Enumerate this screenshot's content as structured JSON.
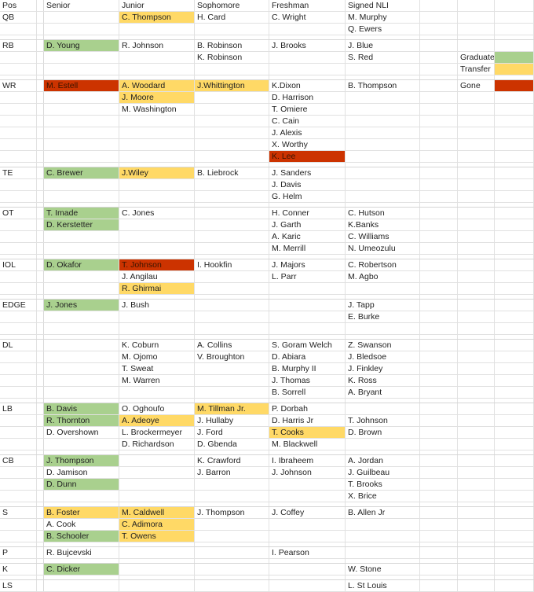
{
  "headers": [
    "Pos",
    "Senior",
    "Junior",
    "Sophomore",
    "Freshman",
    "Signed NLI"
  ],
  "legend": [
    {
      "label": "Graduate",
      "color": "#a9d08e"
    },
    {
      "label": "Transfer",
      "color": "#ffd966"
    },
    {
      "label": "Gone",
      "color": "#cc3300"
    }
  ],
  "rows": [
    {
      "pos": "QB",
      "senior": "",
      "junior": "C. Thompson",
      "sophomore": "H. Card",
      "freshman": "C. Wright",
      "nli": "M. Murphy"
    },
    {
      "pos": "",
      "senior": "",
      "junior": "",
      "sophomore": "",
      "freshman": "",
      "nli": "Q. Ewers"
    },
    {
      "pos": "RB",
      "senior": "D. Young",
      "junior": "R. Johnson",
      "sophomore": "B. Robinson",
      "freshman": "J. Brooks",
      "nli": "J. Blue"
    },
    {
      "pos": "",
      "senior": "",
      "junior": "",
      "sophomore": "K. Robinson",
      "freshman": "",
      "nli": "S. Red"
    },
    {
      "pos": "",
      "senior": "",
      "junior": "",
      "sophomore": "",
      "freshman": "",
      "nli": ""
    },
    {
      "pos": "WR",
      "senior": "M. Estell",
      "junior": "A. Woodard",
      "sophomore": "J.Whittington",
      "freshman": "K.Dixon",
      "nli": "B. Thompson"
    },
    {
      "pos": "",
      "senior": "",
      "junior": "J. Moore",
      "sophomore": "",
      "freshman": "D. Harrison",
      "nli": ""
    },
    {
      "pos": "",
      "senior": "",
      "junior": "M. Washington",
      "sophomore": "",
      "freshman": "T. Omiere",
      "nli": ""
    },
    {
      "pos": "",
      "senior": "",
      "junior": "",
      "sophomore": "",
      "freshman": "C. Cain",
      "nli": ""
    },
    {
      "pos": "",
      "senior": "",
      "junior": "",
      "sophomore": "",
      "freshman": "J. Alexis",
      "nli": ""
    },
    {
      "pos": "",
      "senior": "",
      "junior": "",
      "sophomore": "",
      "freshman": "X. Worthy",
      "nli": ""
    },
    {
      "pos": "",
      "senior": "",
      "junior": "",
      "sophomore": "",
      "freshman": "K. Lee",
      "nli": ""
    },
    {
      "pos": "TE",
      "senior": "C. Brewer",
      "junior": "J.Wiley",
      "sophomore": "B. Liebrock",
      "freshman": "J. Sanders",
      "nli": ""
    },
    {
      "pos": "",
      "senior": "",
      "junior": "",
      "sophomore": "",
      "freshman": "J. Davis",
      "nli": ""
    },
    {
      "pos": "",
      "senior": "",
      "junior": "",
      "sophomore": "",
      "freshman": "G. Helm",
      "nli": ""
    },
    {
      "pos": "OT",
      "senior": "T. Imade",
      "junior": "C. Jones",
      "sophomore": "",
      "freshman": "H. Conner",
      "nli": "C. Hutson"
    },
    {
      "pos": "",
      "senior": "D. Kerstetter",
      "junior": "",
      "sophomore": "",
      "freshman": "J. Garth",
      "nli": "K.Banks"
    },
    {
      "pos": "",
      "senior": "",
      "junior": "",
      "sophomore": "",
      "freshman": "A. Karic",
      "nli": "C. Williams"
    },
    {
      "pos": "",
      "senior": "",
      "junior": "",
      "sophomore": "",
      "freshman": "M. Merrill",
      "nli": "N. Umeozulu"
    },
    {
      "pos": "IOL",
      "senior": "D. Okafor",
      "junior": "T. Johnson",
      "sophomore": "I. Hookfin",
      "freshman": "J. Majors",
      "nli": "C. Robertson"
    },
    {
      "pos": "",
      "senior": "",
      "junior": "J. Angilau",
      "sophomore": "",
      "freshman": "L. Parr",
      "nli": "M. Agbo"
    },
    {
      "pos": "",
      "senior": "",
      "junior": "R. Ghirmai",
      "sophomore": "",
      "freshman": "",
      "nli": ""
    },
    {
      "pos": "EDGE",
      "senior": "J. Jones",
      "junior": "J. Bush",
      "sophomore": "",
      "freshman": "",
      "nli": "J. Tapp"
    },
    {
      "pos": "",
      "senior": "",
      "junior": "",
      "sophomore": "",
      "freshman": "",
      "nli": "E. Burke"
    },
    {
      "pos": "",
      "senior": "",
      "junior": "",
      "sophomore": "",
      "freshman": "",
      "nli": ""
    },
    {
      "pos": "DL",
      "senior": "",
      "junior": "K. Coburn",
      "sophomore": "A. Collins",
      "freshman": "S. Goram Welch",
      "nli": "Z. Swanson"
    },
    {
      "pos": "",
      "senior": "",
      "junior": "M. Ojomo",
      "sophomore": "V. Broughton",
      "freshman": "D. Abiara",
      "nli": "J. Bledsoe"
    },
    {
      "pos": "",
      "senior": "",
      "junior": "T. Sweat",
      "sophomore": "",
      "freshman": "B. Murphy II",
      "nli": "J. Finkley"
    },
    {
      "pos": "",
      "senior": "",
      "junior": "M. Warren",
      "sophomore": "",
      "freshman": "J. Thomas",
      "nli": "K. Ross"
    },
    {
      "pos": "",
      "senior": "",
      "junior": "",
      "sophomore": "",
      "freshman": "B. Sorrell",
      "nli": "A. Bryant"
    },
    {
      "pos": "LB",
      "senior": "B. Davis",
      "junior": "O. Oghoufo",
      "sophomore": "M. Tillman Jr.",
      "freshman": "P. Dorbah",
      "nli": ""
    },
    {
      "pos": "",
      "senior": "R. Thornton",
      "junior": "A. Adeoye",
      "sophomore": "J. Hullaby",
      "freshman": "D. Harris Jr",
      "nli": "T. Johnson"
    },
    {
      "pos": "",
      "senior": "D. Overshown",
      "junior": "L. Brockermeyer",
      "sophomore": "J. Ford",
      "freshman": "T. Cooks",
      "nli": "D. Brown"
    },
    {
      "pos": "",
      "senior": "",
      "junior": "D. Richardson",
      "sophomore": "D. Gbenda",
      "freshman": "M. Blackwell",
      "nli": ""
    },
    {
      "pos": "CB",
      "senior": "J. Thompson",
      "junior": "",
      "sophomore": "K. Crawford",
      "freshman": "I. Ibraheem",
      "nli": "A. Jordan"
    },
    {
      "pos": "",
      "senior": "D. Jamison",
      "junior": "",
      "sophomore": "J. Barron",
      "freshman": "J. Johnson",
      "nli": "J. Guilbeau"
    },
    {
      "pos": "",
      "senior": "D. Dunn",
      "junior": "",
      "sophomore": "",
      "freshman": "",
      "nli": "T. Brooks"
    },
    {
      "pos": "",
      "senior": "",
      "junior": "",
      "sophomore": "",
      "freshman": "",
      "nli": "X. Brice"
    },
    {
      "pos": "S",
      "senior": "B. Foster",
      "junior": "M. Caldwell",
      "sophomore": "J. Thompson",
      "freshman": "J. Coffey",
      "nli": "B. Allen Jr"
    },
    {
      "pos": "",
      "senior": "A. Cook",
      "junior": "C. Adimora",
      "sophomore": "",
      "freshman": "",
      "nli": ""
    },
    {
      "pos": "",
      "senior": "B. Schooler",
      "junior": "T. Owens",
      "sophomore": "",
      "freshman": "",
      "nli": ""
    },
    {
      "pos": "P",
      "senior": "R. Bujcevski",
      "junior": "",
      "sophomore": "",
      "freshman": "I. Pearson",
      "nli": ""
    },
    {
      "pos": "K",
      "senior": "C. Dicker",
      "junior": "",
      "sophomore": "",
      "freshman": "",
      "nli": "W. Stone"
    },
    {
      "pos": "LS",
      "senior": "",
      "junior": "",
      "sophomore": "",
      "freshman": "",
      "nli": "L. St Louis"
    }
  ]
}
